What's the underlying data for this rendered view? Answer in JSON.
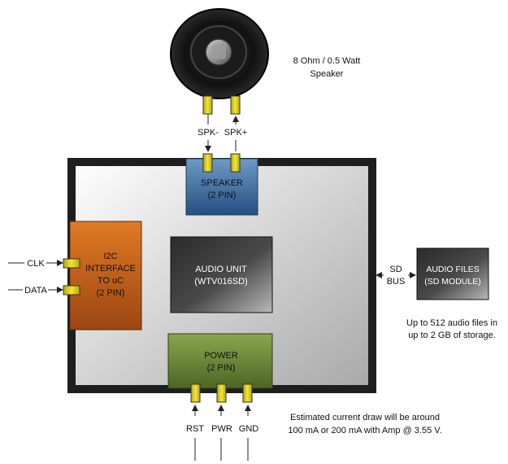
{
  "speaker": {
    "caption_line1": "8 Ohm / 0.5 Watt",
    "caption_line2": "Speaker",
    "spk_minus": "SPK-",
    "spk_plus": "SPK+"
  },
  "blocks": {
    "speaker_port": {
      "line1": "SPEAKER",
      "line2": "(2 PIN)"
    },
    "i2c": {
      "line1": "I2C",
      "line2": "INTERFACE",
      "line3": "TO uC",
      "line4": "(2 PIN)"
    },
    "audio_unit": {
      "line1": "AUDIO UNIT",
      "line2": "(WTV016SD)"
    },
    "power": {
      "line1": "POWER",
      "line2": "(2 PIN)"
    },
    "audio_files": {
      "line1": "AUDIO FILES",
      "line2": "(SD MODULE)"
    }
  },
  "signals": {
    "clk": "CLK",
    "data": "DATA",
    "sd_bus_line1": "SD",
    "sd_bus_line2": "BUS",
    "rst": "RST",
    "pwr": "PWR",
    "gnd": "GND"
  },
  "notes": {
    "storage_line1": "Up to 512 audio files in",
    "storage_line2": "up to 2 GB of storage.",
    "current_line1": "Estimated current draw will be around",
    "current_line2": "100 mA or 200 mA with Amp @ 3.55 V."
  },
  "colors": {
    "board_border": "#1e1e1e",
    "i2c_orange": "#c8641a",
    "speaker_blue": "#3a6da0",
    "power_green": "#5f7a32",
    "pin_yellow": "#e6d21e"
  }
}
